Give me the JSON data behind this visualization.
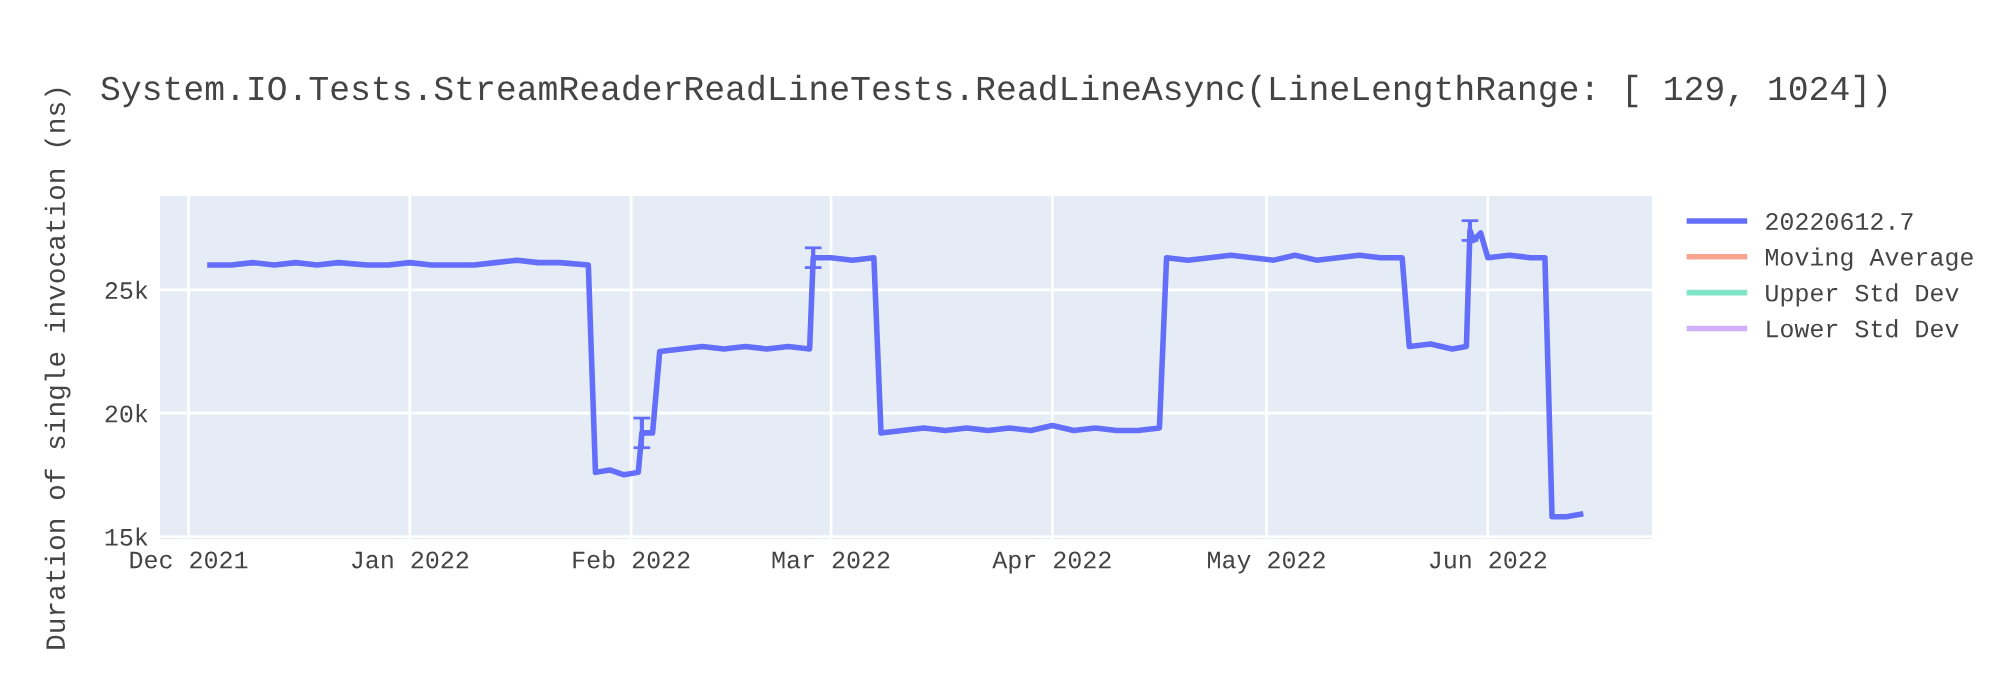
{
  "chart_data": {
    "type": "line",
    "title": "System.IO.Tests.StreamReaderReadLineTests.ReadLineAsync(LineLengthRange: [ 129, 1024])",
    "ylabel": "Duration of single invocation (ns)",
    "x": [
      "2021-12-04",
      "2021-12-07",
      "2021-12-10",
      "2021-12-13",
      "2021-12-16",
      "2021-12-19",
      "2021-12-22",
      "2021-12-26",
      "2021-12-29",
      "2022-01-01",
      "2022-01-04",
      "2022-01-07",
      "2022-01-10",
      "2022-01-13",
      "2022-01-16",
      "2022-01-19",
      "2022-01-22",
      "2022-01-26",
      "2022-01-27",
      "2022-01-29",
      "2022-01-31",
      "2022-02-02",
      "2022-02-02T12:00",
      "2022-02-04",
      "2022-02-05",
      "2022-02-08",
      "2022-02-11",
      "2022-02-14",
      "2022-02-17",
      "2022-02-20",
      "2022-02-23",
      "2022-02-26",
      "2022-02-26T12:00",
      "2022-03-01",
      "2022-03-04",
      "2022-03-07",
      "2022-03-08",
      "2022-03-11",
      "2022-03-14",
      "2022-03-17",
      "2022-03-20",
      "2022-03-23",
      "2022-03-26",
      "2022-03-29",
      "2022-04-01",
      "2022-04-04",
      "2022-04-07",
      "2022-04-10",
      "2022-04-13",
      "2022-04-16",
      "2022-04-17",
      "2022-04-20",
      "2022-04-23",
      "2022-04-26",
      "2022-04-29",
      "2022-05-02",
      "2022-05-05",
      "2022-05-08",
      "2022-05-11",
      "2022-05-14",
      "2022-05-17",
      "2022-05-20",
      "2022-05-21",
      "2022-05-24",
      "2022-05-27",
      "2022-05-29",
      "2022-05-29T12:00",
      "2022-05-30",
      "2022-05-31",
      "2022-06-01",
      "2022-06-04",
      "2022-06-07",
      "2022-06-09",
      "2022-06-10",
      "2022-06-12",
      "2022-06-14"
    ],
    "series": [
      {
        "name": "20220612.7",
        "color": "#636efa",
        "values": [
          26000,
          26000,
          26100,
          26000,
          26100,
          26000,
          26100,
          26000,
          26000,
          26100,
          26000,
          26000,
          26000,
          26100,
          26200,
          26100,
          26100,
          26000,
          17600,
          17700,
          17500,
          17600,
          19200,
          19200,
          22500,
          22600,
          22700,
          22600,
          22700,
          22600,
          22700,
          22600,
          26300,
          26300,
          26200,
          26300,
          19200,
          19300,
          19400,
          19300,
          19400,
          19300,
          19400,
          19300,
          19500,
          19300,
          19400,
          19300,
          19300,
          19400,
          26300,
          26200,
          26300,
          26400,
          26300,
          26200,
          26400,
          26200,
          26300,
          26400,
          26300,
          26300,
          22700,
          22800,
          22600,
          22700,
          27400,
          27000,
          27300,
          26300,
          26400,
          26300,
          26300,
          15800,
          15800,
          15900
        ],
        "errors": [
          null,
          null,
          null,
          null,
          null,
          null,
          null,
          null,
          null,
          null,
          null,
          null,
          null,
          null,
          null,
          null,
          null,
          null,
          null,
          null,
          null,
          null,
          600,
          null,
          null,
          null,
          null,
          null,
          null,
          null,
          null,
          null,
          400,
          null,
          null,
          null,
          null,
          null,
          null,
          null,
          null,
          null,
          null,
          null,
          null,
          null,
          null,
          null,
          null,
          null,
          null,
          null,
          null,
          null,
          null,
          null,
          null,
          null,
          null,
          null,
          null,
          null,
          null,
          null,
          null,
          null,
          400,
          null,
          null,
          null,
          null,
          null,
          null,
          null,
          null,
          null
        ]
      },
      {
        "name": "Moving Average",
        "color": "#f7a58f",
        "values": [
          null,
          null,
          null,
          null,
          null,
          null,
          null,
          null,
          null,
          null,
          null,
          null,
          null,
          null,
          null,
          null,
          null,
          null,
          null,
          null,
          null,
          null,
          null,
          null,
          null,
          null,
          null,
          null,
          null,
          null,
          null,
          null,
          null,
          null,
          null,
          null,
          null,
          null,
          null,
          null,
          null,
          null,
          null,
          null,
          null,
          null,
          null,
          null,
          null,
          null,
          null,
          null,
          null,
          null,
          null,
          null,
          null,
          null,
          null,
          null,
          null,
          null,
          null,
          null,
          null,
          null,
          null,
          null,
          null,
          null,
          null,
          null,
          null,
          null,
          null,
          null
        ]
      },
      {
        "name": "Upper Std Dev",
        "color": "#7fe5c4",
        "values": [
          null,
          null,
          null,
          null,
          null,
          null,
          null,
          null,
          null,
          null,
          null,
          null,
          null,
          null,
          null,
          null,
          null,
          null,
          null,
          null,
          null,
          null,
          null,
          null,
          null,
          null,
          null,
          null,
          null,
          null,
          null,
          null,
          null,
          null,
          null,
          null,
          null,
          null,
          null,
          null,
          null,
          null,
          null,
          null,
          null,
          null,
          null,
          null,
          null,
          null,
          null,
          null,
          null,
          null,
          null,
          null,
          null,
          null,
          null,
          null,
          null,
          null,
          null,
          null,
          null,
          null,
          null,
          null,
          null,
          null,
          null,
          null,
          null,
          null,
          null,
          null
        ]
      },
      {
        "name": "Lower Std Dev",
        "color": "#d1b0fb",
        "values": [
          null,
          null,
          null,
          null,
          null,
          null,
          null,
          null,
          null,
          null,
          null,
          null,
          null,
          null,
          null,
          null,
          null,
          null,
          null,
          null,
          null,
          null,
          null,
          null,
          null,
          null,
          null,
          null,
          null,
          null,
          null,
          null,
          null,
          null,
          null,
          null,
          null,
          null,
          null,
          null,
          null,
          null,
          null,
          null,
          null,
          null,
          null,
          null,
          null,
          null,
          null,
          null,
          null,
          null,
          null,
          null,
          null,
          null,
          null,
          null,
          null,
          null,
          null,
          null,
          null,
          null,
          null,
          null,
          null,
          null,
          null,
          null,
          null,
          null,
          null,
          null
        ]
      }
    ],
    "xlim": [
      "2021-11-27",
      "2022-06-24"
    ],
    "xticks": [
      {
        "value": "2021-12-01",
        "label": "Dec 2021"
      },
      {
        "value": "2022-01-01",
        "label": "Jan 2022"
      },
      {
        "value": "2022-02-01",
        "label": "Feb 2022"
      },
      {
        "value": "2022-03-01",
        "label": "Mar 2022"
      },
      {
        "value": "2022-04-01",
        "label": "Apr 2022"
      },
      {
        "value": "2022-05-01",
        "label": "May 2022"
      },
      {
        "value": "2022-06-01",
        "label": "Jun 2022"
      }
    ],
    "ylim": [
      14900,
      28800
    ],
    "yticks": [
      {
        "value": 15000,
        "label": "15k"
      },
      {
        "value": 20000,
        "label": "20k"
      },
      {
        "value": 25000,
        "label": "25k"
      }
    ],
    "grid": true,
    "legend": "top right",
    "marker": "none",
    "line_style": "solid"
  }
}
